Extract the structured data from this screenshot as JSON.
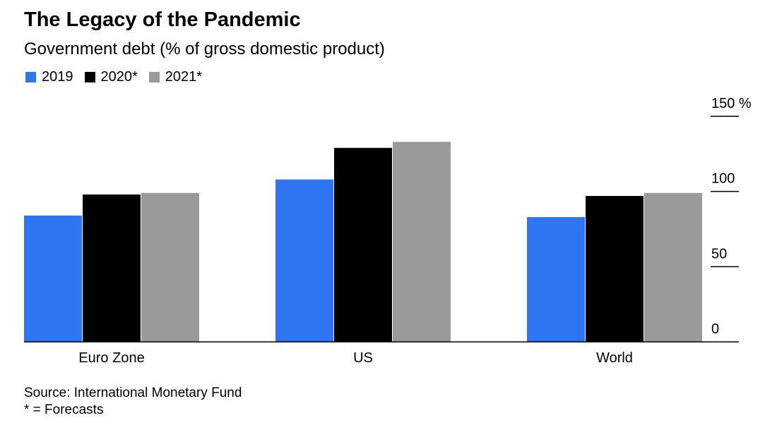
{
  "chart_data": {
    "type": "bar",
    "title": "The Legacy of the Pandemic",
    "subtitle": "Government debt (% of gross domestic product)",
    "categories": [
      "Euro Zone",
      "US",
      "World"
    ],
    "series": [
      {
        "name": "2019",
        "color": "#2f74f0",
        "values": [
          84,
          108,
          83
        ]
      },
      {
        "name": "2020*",
        "color": "#000000",
        "values": [
          98,
          129,
          97
        ]
      },
      {
        "name": "2021*",
        "color": "#9a9a9a",
        "values": [
          99,
          133,
          99
        ]
      }
    ],
    "ylim": [
      0,
      150
    ],
    "yticks": [
      {
        "value": 0,
        "label": "0"
      },
      {
        "value": 50,
        "label": "50"
      },
      {
        "value": 100,
        "label": "100"
      },
      {
        "value": 150,
        "label": "150 %"
      }
    ],
    "xlabel": "",
    "ylabel": ""
  },
  "footer": {
    "source": "Source: International Monetary Fund",
    "note": "* = Forecasts"
  }
}
